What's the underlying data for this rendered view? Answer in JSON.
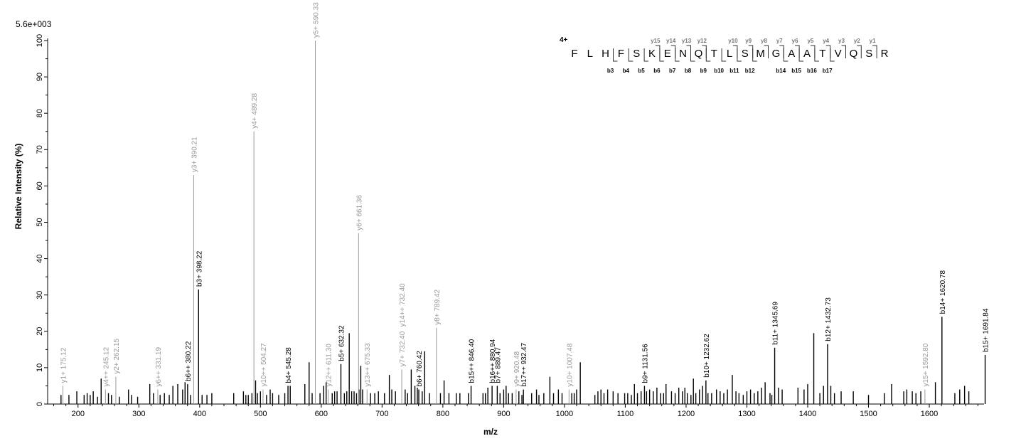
{
  "chart_data": {
    "type": "bar",
    "scale_label": "5.6e+003",
    "xlabel": "m/z",
    "ylabel": "Relative   Intensity (%)",
    "xlim": [
      150,
      1690
    ],
    "ylim": [
      0,
      100
    ],
    "xticks": [
      200,
      300,
      400,
      500,
      600,
      700,
      800,
      900,
      1000,
      1100,
      1200,
      1300,
      1400,
      1500,
      1600
    ],
    "yticks": [
      0,
      10,
      20,
      30,
      40,
      50,
      60,
      70,
      80,
      90,
      100
    ],
    "charge_label": "4+",
    "sequence": [
      "F",
      "L",
      "H",
      "F",
      "S",
      "K",
      "E",
      "N",
      "Q",
      "T",
      "L",
      "S",
      "M",
      "G",
      "A",
      "A",
      "T",
      "V",
      "Q",
      "S",
      "R"
    ],
    "y_ion_labels": [
      {
        "after": 5,
        "text": "y15"
      },
      {
        "after": 6,
        "text": "y14"
      },
      {
        "after": 7,
        "text": "y13"
      },
      {
        "after": 8,
        "text": "y12"
      },
      {
        "after": 10,
        "text": "y10"
      },
      {
        "after": 11,
        "text": "y9"
      },
      {
        "after": 12,
        "text": "y8"
      },
      {
        "after": 13,
        "text": "y7"
      },
      {
        "after": 14,
        "text": "y6"
      },
      {
        "after": 15,
        "text": "y5"
      },
      {
        "after": 16,
        "text": "y4"
      },
      {
        "after": 17,
        "text": "y3"
      },
      {
        "after": 18,
        "text": "y2"
      },
      {
        "after": 19,
        "text": "y1"
      }
    ],
    "b_ion_labels": [
      {
        "after": 2,
        "text": "b3"
      },
      {
        "after": 3,
        "text": "b4"
      },
      {
        "after": 4,
        "text": "b5"
      },
      {
        "after": 5,
        "text": "b6"
      },
      {
        "after": 6,
        "text": "b7"
      },
      {
        "after": 7,
        "text": "b8"
      },
      {
        "after": 8,
        "text": "b9"
      },
      {
        "after": 9,
        "text": "b10"
      },
      {
        "after": 10,
        "text": "b11"
      },
      {
        "after": 11,
        "text": "b12"
      },
      {
        "after": 13,
        "text": "b14"
      },
      {
        "after": 14,
        "text": "b15"
      },
      {
        "after": 15,
        "text": "b16"
      },
      {
        "after": 16,
        "text": "b17"
      }
    ],
    "labeled_peaks": [
      {
        "mz": 175.12,
        "y": 5,
        "label": "y1+ 175.12",
        "series": "y"
      },
      {
        "mz": 245.12,
        "y": 4,
        "label": "y4++ 245.12",
        "series": "y"
      },
      {
        "mz": 262.15,
        "y": 7.5,
        "label": "y2+ 262.15",
        "series": "y"
      },
      {
        "mz": 331.19,
        "y": 4,
        "label": "y6++ 331.19",
        "series": "y"
      },
      {
        "mz": 380.22,
        "y": 5.5,
        "label": "b6++ 380.22",
        "series": "b"
      },
      {
        "mz": 390.21,
        "y": 63,
        "label": "y3+ 390.21",
        "series": "y"
      },
      {
        "mz": 398.22,
        "y": 31.5,
        "label": "b3+ 398.22",
        "series": "b"
      },
      {
        "mz": 489.28,
        "y": 75,
        "label": "y4+ 489.28",
        "series": "y"
      },
      {
        "mz": 504.27,
        "y": 4,
        "label": "y10++ 504.27",
        "series": "y"
      },
      {
        "mz": 545.28,
        "y": 5,
        "label": "b4+ 545.28",
        "series": "b"
      },
      {
        "mz": 590.33,
        "y": 100,
        "label": "y5+ 590.33",
        "series": "y"
      },
      {
        "mz": 611.3,
        "y": 4,
        "label": "y12++ 611.30",
        "series": "y"
      },
      {
        "mz": 632.32,
        "y": 11,
        "label": "b5+ 632.32",
        "series": "b"
      },
      {
        "mz": 661.36,
        "y": 47,
        "label": "y6+ 661.36",
        "series": "y"
      },
      {
        "mz": 675.33,
        "y": 4,
        "label": "y13++ 675.33",
        "series": "y"
      },
      {
        "mz": 732.4,
        "y": 9.5,
        "label": "y7+ 732.40",
        "series": "y"
      },
      {
        "mz": 732.4,
        "y": 9.5,
        "label": "y14++ 732.40",
        "series": "y",
        "stack": 1
      },
      {
        "mz": 760.42,
        "y": 4,
        "label": "b6+ 760.42",
        "series": "b"
      },
      {
        "mz": 789.42,
        "y": 21,
        "label": "y8+ 789.42",
        "series": "y"
      },
      {
        "mz": 846.4,
        "y": 5,
        "label": "b15++ 846.40",
        "series": "b"
      },
      {
        "mz": 880.94,
        "y": 5,
        "label": "b16++ 880.94",
        "series": "b"
      },
      {
        "mz": 889.47,
        "y": 5,
        "label": "b7+ 889.47",
        "series": "b"
      },
      {
        "mz": 920.48,
        "y": 4,
        "label": "y9+ 920.48",
        "series": "y"
      },
      {
        "mz": 932.47,
        "y": 4,
        "label": "b17++ 932.47",
        "series": "b"
      },
      {
        "mz": 1007.48,
        "y": 4,
        "label": "y10+ 1007.48",
        "series": "y"
      },
      {
        "mz": 1131.56,
        "y": 5,
        "label": "b9+ 1131.56",
        "series": "b"
      },
      {
        "mz": 1232.62,
        "y": 6.5,
        "label": "b10+ 1232.62",
        "series": "b"
      },
      {
        "mz": 1345.69,
        "y": 15.5,
        "label": "b11+ 1345.69",
        "series": "b"
      },
      {
        "mz": 1432.73,
        "y": 16.5,
        "label": "b12+ 1432.73",
        "series": "b"
      },
      {
        "mz": 1592.8,
        "y": 4,
        "label": "y15+ 1592.80",
        "series": "y"
      },
      {
        "mz": 1620.78,
        "y": 24,
        "label": "b14+ 1620.78",
        "series": "b"
      },
      {
        "mz": 1691.84,
        "y": 13.5,
        "label": "b15+ 1691.84",
        "series": "b"
      }
    ],
    "unlabeled_peaks": [
      [
        172,
        2.5
      ],
      [
        185,
        2.5
      ],
      [
        198,
        3.5
      ],
      [
        210,
        2.5
      ],
      [
        215,
        3
      ],
      [
        220,
        2.5
      ],
      [
        225,
        3.5
      ],
      [
        232,
        2
      ],
      [
        238,
        7
      ],
      [
        250,
        3
      ],
      [
        255,
        2.5
      ],
      [
        268,
        2
      ],
      [
        283,
        4
      ],
      [
        288,
        2.5
      ],
      [
        298,
        2
      ],
      [
        318,
        5.5
      ],
      [
        324,
        3
      ],
      [
        335,
        2.5
      ],
      [
        342,
        3
      ],
      [
        350,
        2.5
      ],
      [
        356,
        5
      ],
      [
        364,
        5.5
      ],
      [
        372,
        4
      ],
      [
        376,
        6
      ],
      [
        385,
        2.5
      ],
      [
        404,
        2.5
      ],
      [
        412,
        2.5
      ],
      [
        420,
        3
      ],
      [
        456,
        3
      ],
      [
        472,
        3.5
      ],
      [
        476,
        2.5
      ],
      [
        480,
        2.5
      ],
      [
        486,
        3
      ],
      [
        492,
        6.5
      ],
      [
        495,
        3
      ],
      [
        500,
        3.5
      ],
      [
        510,
        2.5
      ],
      [
        516,
        4
      ],
      [
        520,
        3
      ],
      [
        530,
        2.5
      ],
      [
        540,
        3
      ],
      [
        549,
        5
      ],
      [
        573,
        5.5
      ],
      [
        580,
        11.5
      ],
      [
        585,
        3
      ],
      [
        598,
        3
      ],
      [
        604,
        5
      ],
      [
        608,
        6
      ],
      [
        618,
        3
      ],
      [
        622,
        3.5
      ],
      [
        626,
        3.5
      ],
      [
        638,
        3
      ],
      [
        642,
        3.5
      ],
      [
        646,
        19.5
      ],
      [
        650,
        3.5
      ],
      [
        654,
        3.5
      ],
      [
        658,
        3
      ],
      [
        662,
        4
      ],
      [
        665,
        10.5
      ],
      [
        668,
        4
      ],
      [
        681,
        3
      ],
      [
        688,
        3
      ],
      [
        694,
        3.5
      ],
      [
        704,
        3
      ],
      [
        712,
        8
      ],
      [
        716,
        4
      ],
      [
        722,
        3.5
      ],
      [
        738,
        4
      ],
      [
        742,
        3
      ],
      [
        748,
        9.5
      ],
      [
        754,
        5
      ],
      [
        758,
        4.5
      ],
      [
        766,
        3.5
      ],
      [
        770,
        14.5
      ],
      [
        778,
        3
      ],
      [
        796,
        3
      ],
      [
        802,
        6.5
      ],
      [
        810,
        3
      ],
      [
        822,
        3
      ],
      [
        828,
        3
      ],
      [
        842,
        3
      ],
      [
        866,
        3
      ],
      [
        870,
        3
      ],
      [
        874,
        4.5
      ],
      [
        894,
        3
      ],
      [
        900,
        4
      ],
      [
        904,
        5
      ],
      [
        908,
        3
      ],
      [
        914,
        3
      ],
      [
        925,
        3.5
      ],
      [
        930,
        2.5
      ],
      [
        946,
        3
      ],
      [
        954,
        4
      ],
      [
        958,
        2.5
      ],
      [
        966,
        3
      ],
      [
        976,
        7.5
      ],
      [
        982,
        3
      ],
      [
        990,
        4
      ],
      [
        996,
        3
      ],
      [
        1012,
        3
      ],
      [
        1016,
        3
      ],
      [
        1020,
        4
      ],
      [
        1026,
        11.5
      ],
      [
        1050,
        2.5
      ],
      [
        1055,
        3.5
      ],
      [
        1060,
        4
      ],
      [
        1065,
        3
      ],
      [
        1071,
        4
      ],
      [
        1080,
        3.5
      ],
      [
        1088,
        3
      ],
      [
        1099,
        3
      ],
      [
        1104,
        3
      ],
      [
        1110,
        2.5
      ],
      [
        1115,
        5.5
      ],
      [
        1120,
        3
      ],
      [
        1126,
        3.5
      ],
      [
        1135,
        3.5
      ],
      [
        1140,
        4
      ],
      [
        1146,
        3.5
      ],
      [
        1152,
        4.5
      ],
      [
        1158,
        3
      ],
      [
        1163,
        3
      ],
      [
        1167,
        5.5
      ],
      [
        1176,
        3.5
      ],
      [
        1182,
        3
      ],
      [
        1188,
        4.5
      ],
      [
        1194,
        3.5
      ],
      [
        1198,
        4.5
      ],
      [
        1202,
        3
      ],
      [
        1208,
        2.5
      ],
      [
        1212,
        7
      ],
      [
        1216,
        3
      ],
      [
        1222,
        4
      ],
      [
        1227,
        5
      ],
      [
        1236,
        3
      ],
      [
        1242,
        3
      ],
      [
        1250,
        4
      ],
      [
        1256,
        3.5
      ],
      [
        1262,
        3
      ],
      [
        1268,
        4
      ],
      [
        1276,
        8
      ],
      [
        1282,
        3.5
      ],
      [
        1287,
        3
      ],
      [
        1294,
        2.5
      ],
      [
        1300,
        3.5
      ],
      [
        1306,
        4
      ],
      [
        1312,
        3
      ],
      [
        1318,
        3.5
      ],
      [
        1324,
        4.5
      ],
      [
        1330,
        6
      ],
      [
        1338,
        3
      ],
      [
        1341,
        2.5
      ],
      [
        1352,
        4.5
      ],
      [
        1358,
        4
      ],
      [
        1384,
        4.5
      ],
      [
        1394,
        4
      ],
      [
        1400,
        5.5
      ],
      [
        1410,
        19.5
      ],
      [
        1420,
        3
      ],
      [
        1426,
        5
      ],
      [
        1438,
        5
      ],
      [
        1444,
        3
      ],
      [
        1455,
        3.5
      ],
      [
        1475,
        3.5
      ],
      [
        1500,
        2.5
      ],
      [
        1526,
        3
      ],
      [
        1538,
        5.5
      ],
      [
        1558,
        3.5
      ],
      [
        1563,
        4
      ],
      [
        1572,
        3.5
      ],
      [
        1578,
        3
      ],
      [
        1586,
        3.5
      ],
      [
        1610,
        6
      ],
      [
        1642,
        3
      ],
      [
        1650,
        4
      ],
      [
        1658,
        5
      ],
      [
        1665,
        3.5
      ]
    ]
  }
}
